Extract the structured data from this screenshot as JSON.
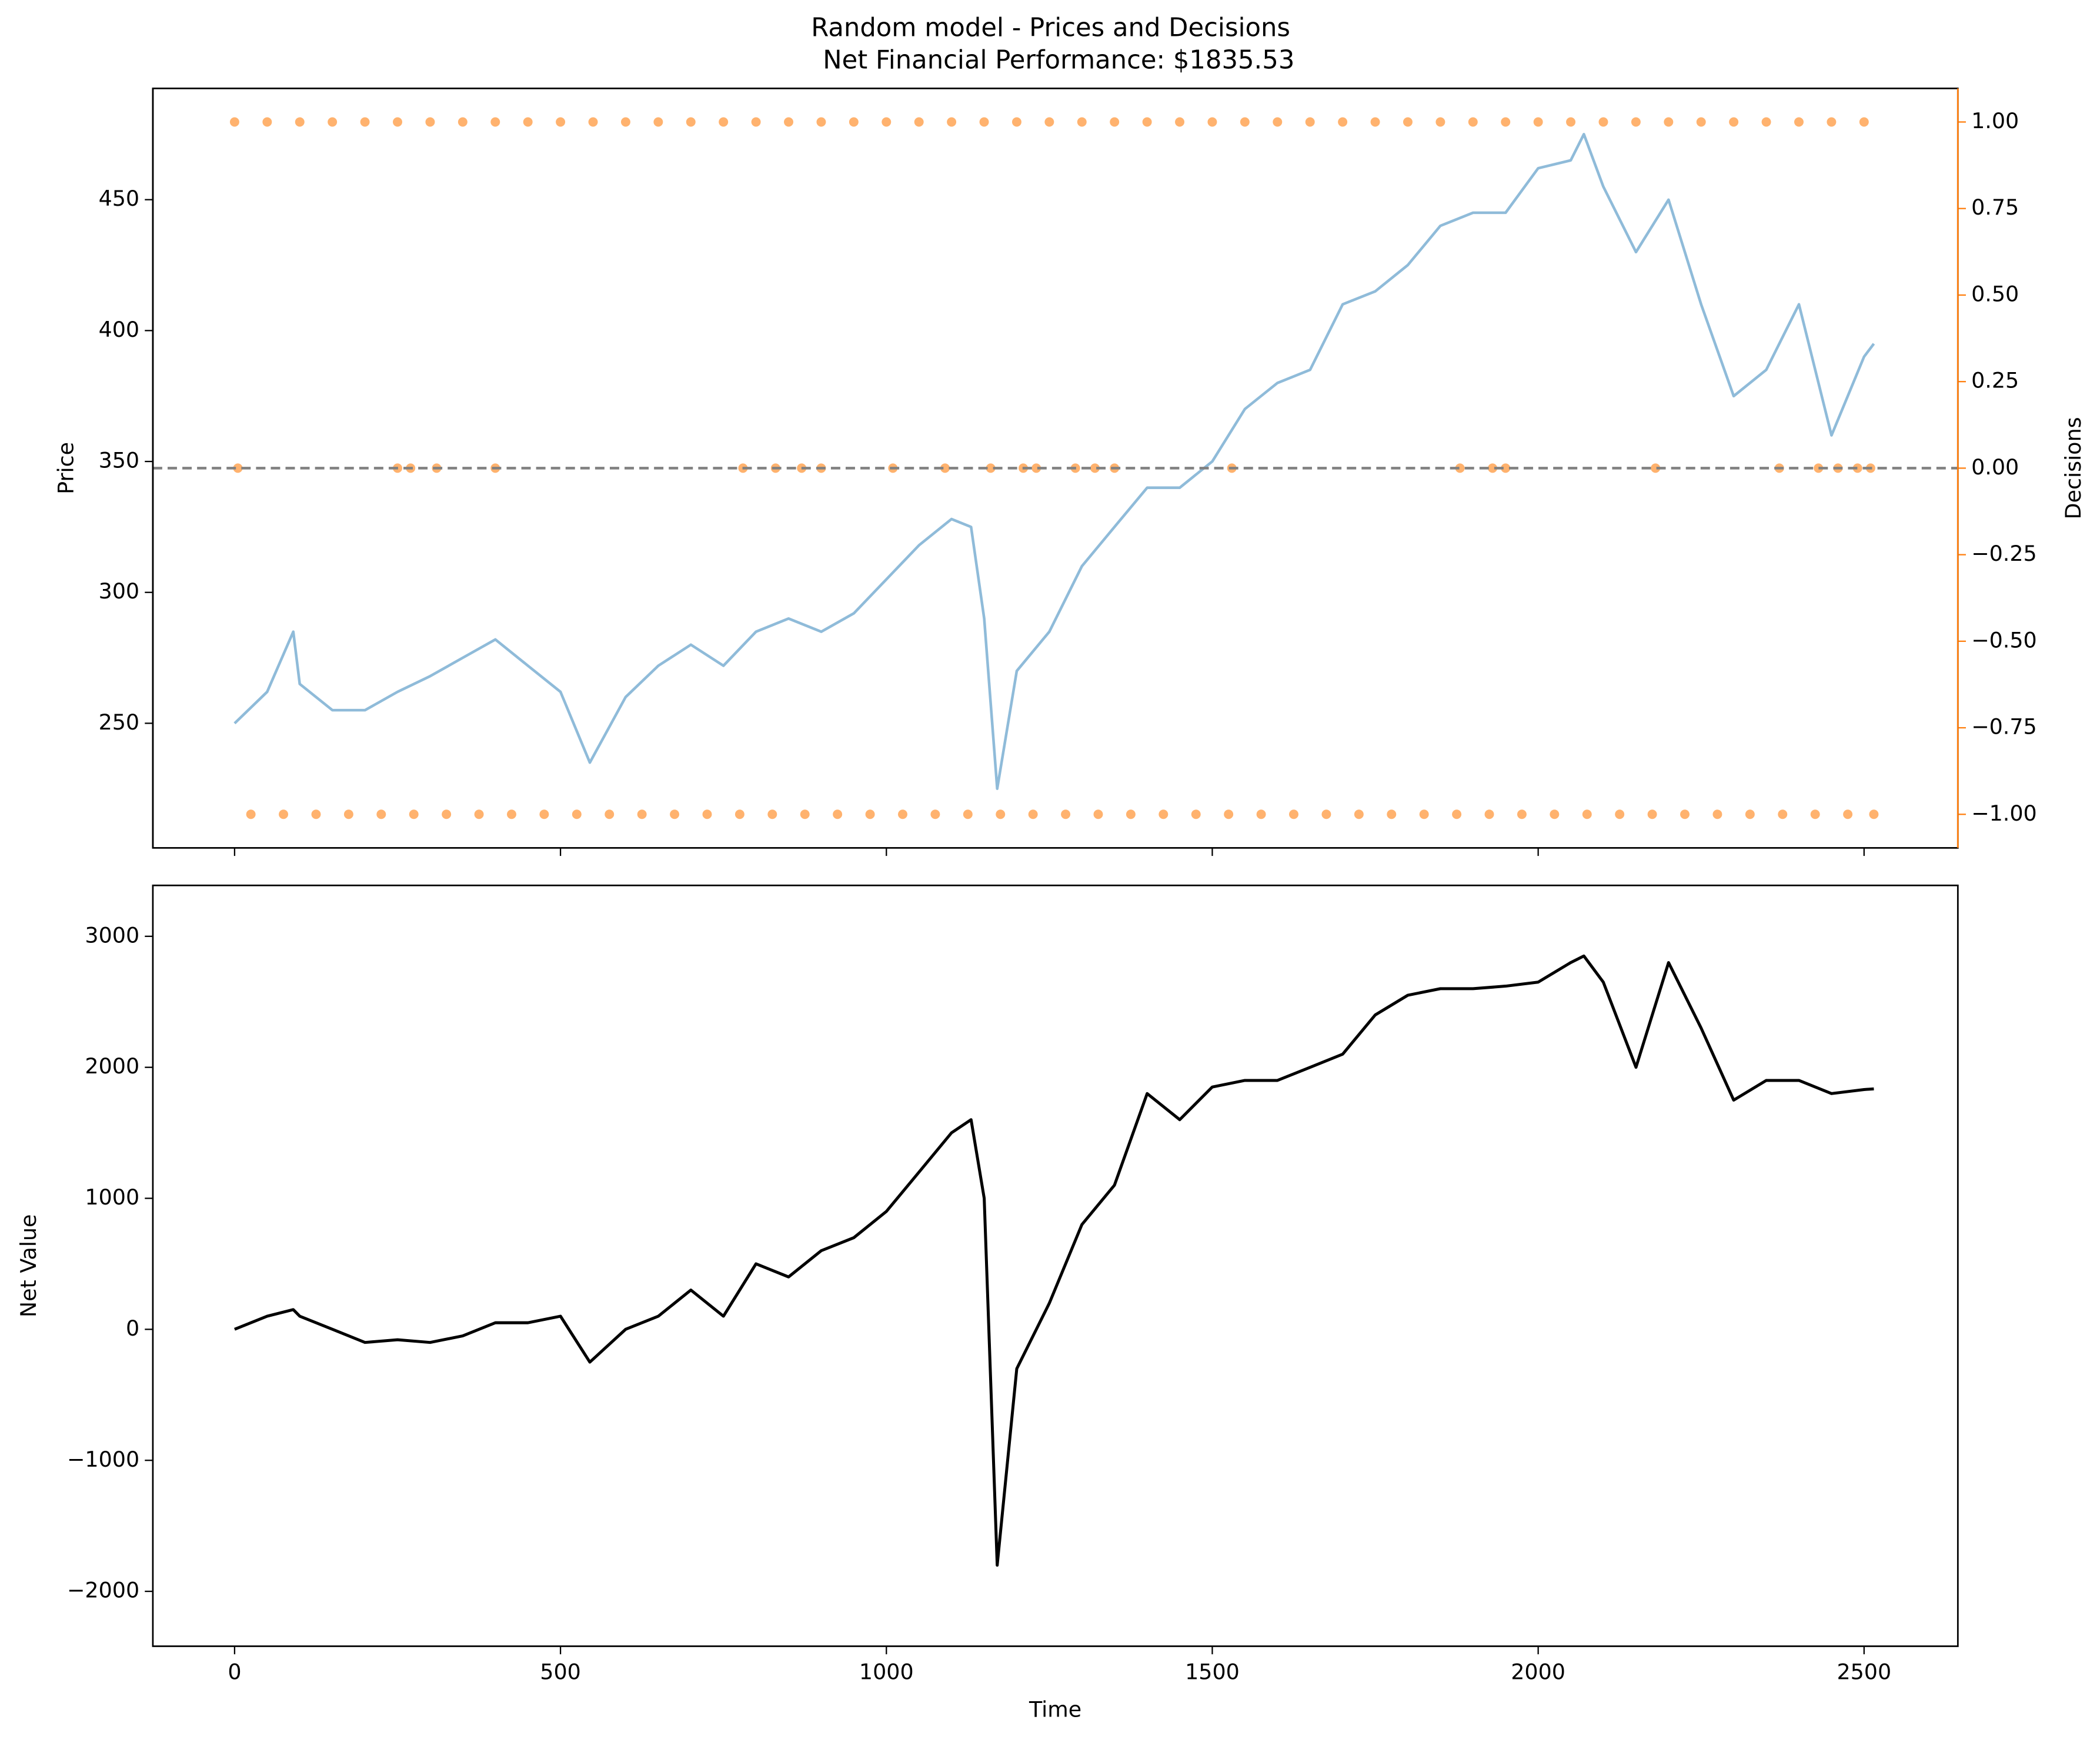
{
  "chart_data": [
    {
      "type": "line",
      "title": "Random model - Prices and Decisions",
      "subtitle": "Net Financial Performance: $1835.53",
      "ylabel": "Price",
      "y2label": "Decisions",
      "y_color": "#1f77b4",
      "y2_color": "#ff7f0e",
      "xlim": [
        -125.4,
        2643.9
      ],
      "ylim": [
        202.4,
        492.5
      ],
      "y2lim": [
        -1.097,
        1.097
      ],
      "xticks": [
        0,
        500,
        1000,
        1500,
        2000,
        2500
      ],
      "show_xtick_labels": false,
      "yticks": [
        250,
        300,
        350,
        400,
        450
      ],
      "y2ticks": [
        {
          "value": -1,
          "label": "−1.00"
        },
        {
          "value": -0.75,
          "label": "−0.75"
        },
        {
          "value": -0.5,
          "label": "−0.50"
        },
        {
          "value": -0.25,
          "label": "−0.25"
        },
        {
          "value": 0,
          "label": "0.00"
        },
        {
          "value": 0.25,
          "label": "0.25"
        },
        {
          "value": 0.5,
          "label": "0.50"
        },
        {
          "value": 0.75,
          "label": "0.75"
        },
        {
          "value": 1,
          "label": "1.00"
        }
      ],
      "hline": {
        "value": 0,
        "axis": "y2",
        "color": "#808080"
      },
      "series": [
        {
          "name": "Price",
          "kind": "line",
          "color": "#1f77b4",
          "alpha": 0.5,
          "x": [
            0,
            50,
            90,
            100,
            150,
            200,
            250,
            300,
            350,
            400,
            450,
            500,
            545,
            600,
            650,
            700,
            750,
            800,
            850,
            900,
            950,
            1000,
            1050,
            1100,
            1130,
            1150,
            1170,
            1200,
            1250,
            1300,
            1350,
            1400,
            1450,
            1500,
            1550,
            1600,
            1650,
            1700,
            1750,
            1800,
            1850,
            1900,
            1950,
            2000,
            2050,
            2070,
            2100,
            2150,
            2200,
            2250,
            2300,
            2350,
            2400,
            2450,
            2500,
            2515
          ],
          "values": [
            250,
            262,
            285,
            265,
            255,
            255,
            262,
            268,
            275,
            282,
            272,
            262,
            235,
            260,
            272,
            280,
            272,
            285,
            290,
            285,
            292,
            305,
            318,
            328,
            325,
            290,
            225,
            270,
            285,
            310,
            325,
            340,
            340,
            350,
            370,
            380,
            385,
            410,
            415,
            425,
            440,
            445,
            445,
            462,
            465,
            475,
            455,
            430,
            450,
            410,
            375,
            385,
            410,
            360,
            390,
            395
          ]
        },
        {
          "name": "Decisions",
          "kind": "scatter",
          "axis": "y2",
          "color": "#ff7f0e",
          "alpha": 0.6,
          "x": [
            0,
            25,
            50,
            75,
            100,
            125,
            150,
            175,
            200,
            225,
            250,
            275,
            300,
            325,
            350,
            375,
            400,
            425,
            450,
            475,
            500,
            525,
            550,
            575,
            600,
            625,
            650,
            675,
            700,
            725,
            750,
            775,
            800,
            825,
            850,
            875,
            900,
            925,
            950,
            975,
            1000,
            1025,
            1050,
            1075,
            1100,
            1125,
            1150,
            1175,
            1200,
            1225,
            1250,
            1275,
            1300,
            1325,
            1350,
            1375,
            1400,
            1425,
            1450,
            1475,
            1500,
            1525,
            1550,
            1575,
            1600,
            1625,
            1650,
            1675,
            1700,
            1725,
            1750,
            1775,
            1800,
            1825,
            1850,
            1875,
            1900,
            1925,
            1950,
            1975,
            2000,
            2025,
            2050,
            2075,
            2100,
            2125,
            2150,
            2175,
            2200,
            2225,
            2250,
            2275,
            2300,
            2325,
            2350,
            2375,
            2400,
            2425,
            2450,
            2475,
            2500,
            2515,
            2510,
            2490,
            2460,
            2430,
            2370,
            2180,
            1950,
            1930,
            1880,
            1530,
            1350,
            1320,
            1290,
            1230,
            1210,
            1160,
            1090,
            1010,
            900,
            870,
            830,
            780,
            400,
            310,
            270,
            250,
            5
          ],
          "values": [
            1,
            -1,
            1,
            -1,
            1,
            -1,
            1,
            -1,
            1,
            -1,
            1,
            -1,
            1,
            -1,
            1,
            -1,
            1,
            -1,
            1,
            -1,
            1,
            -1,
            1,
            -1,
            1,
            -1,
            1,
            -1,
            1,
            -1,
            1,
            -1,
            1,
            -1,
            1,
            -1,
            1,
            -1,
            1,
            -1,
            1,
            -1,
            1,
            -1,
            1,
            -1,
            1,
            -1,
            1,
            -1,
            1,
            -1,
            1,
            -1,
            1,
            -1,
            1,
            -1,
            1,
            -1,
            1,
            -1,
            1,
            -1,
            1,
            -1,
            1,
            -1,
            1,
            -1,
            1,
            -1,
            1,
            -1,
            1,
            -1,
            1,
            -1,
            1,
            -1,
            1,
            -1,
            1,
            -1,
            1,
            -1,
            1,
            -1,
            1,
            -1,
            1,
            -1,
            1,
            -1,
            1,
            -1,
            1,
            -1,
            1,
            -1,
            1,
            -1,
            0,
            0,
            0,
            0,
            0,
            0,
            0,
            0,
            0,
            0,
            0,
            0,
            0,
            0,
            0,
            0,
            0,
            0,
            0,
            0,
            0,
            0,
            0,
            0,
            0,
            0,
            0
          ]
        }
      ]
    },
    {
      "type": "line",
      "xlabel": "Time",
      "ylabel": "Net Value",
      "xlim": [
        -125.4,
        2643.9
      ],
      "ylim": [
        -2419,
        3388.6
      ],
      "xticks": [
        0,
        500,
        1000,
        1500,
        2000,
        2500
      ],
      "show_xtick_labels": true,
      "yticks": [
        {
          "value": -2000,
          "label": "−2000"
        },
        {
          "value": -1000,
          "label": "−1000"
        },
        0,
        1000,
        2000,
        3000
      ],
      "series": [
        {
          "name": "Net Value",
          "kind": "line",
          "color": "#000000",
          "alpha": 1,
          "x": [
            0,
            50,
            90,
            100,
            150,
            200,
            250,
            300,
            350,
            400,
            450,
            500,
            545,
            600,
            650,
            700,
            750,
            800,
            850,
            900,
            950,
            1000,
            1050,
            1100,
            1130,
            1150,
            1170,
            1200,
            1250,
            1300,
            1350,
            1400,
            1450,
            1500,
            1550,
            1600,
            1650,
            1700,
            1750,
            1800,
            1850,
            1900,
            1950,
            2000,
            2050,
            2070,
            2100,
            2150,
            2200,
            2250,
            2300,
            2350,
            2400,
            2450,
            2500,
            2515
          ],
          "values": [
            0,
            100,
            150,
            100,
            0,
            -100,
            -80,
            -100,
            -50,
            50,
            50,
            100,
            -250,
            0,
            100,
            300,
            100,
            500,
            400,
            600,
            700,
            900,
            1200,
            1500,
            1600,
            1000,
            -1800,
            -300,
            200,
            800,
            1100,
            1800,
            1600,
            1850,
            1900,
            1900,
            2000,
            2100,
            2400,
            2550,
            2600,
            2600,
            2620,
            2650,
            2800,
            2850,
            2650,
            2000,
            2800,
            2300,
            1750,
            1900,
            1900,
            1800,
            1830,
            1835
          ]
        }
      ]
    }
  ]
}
